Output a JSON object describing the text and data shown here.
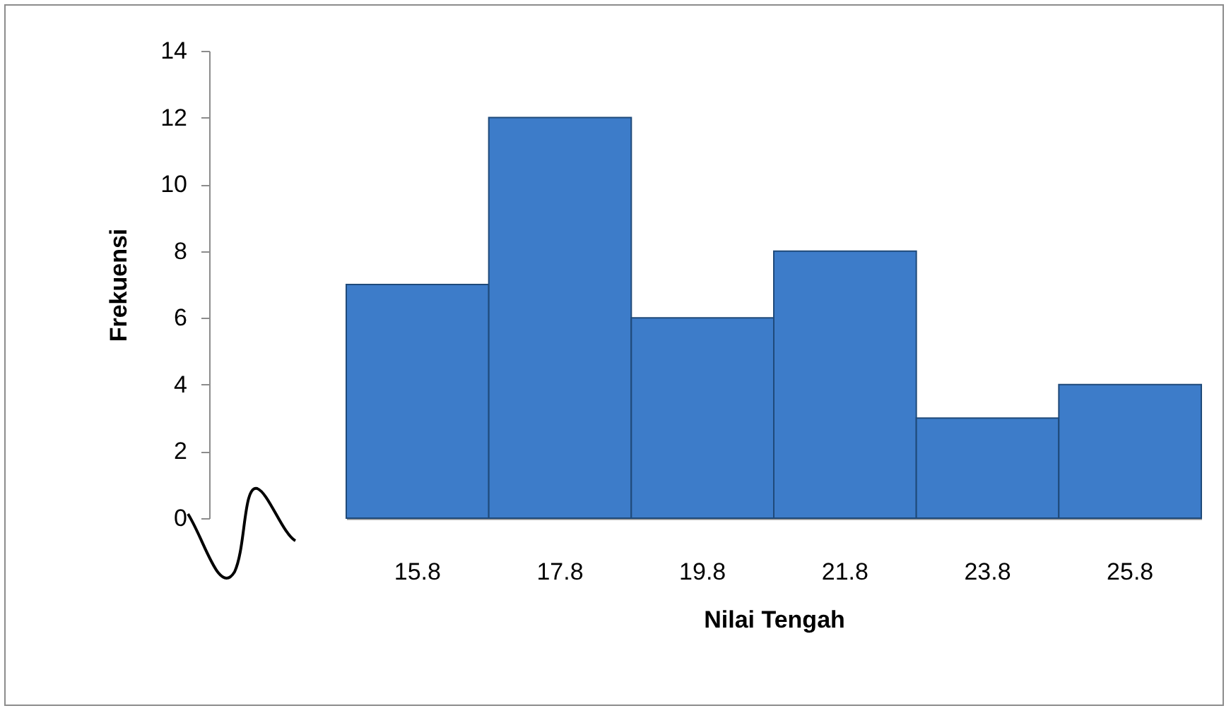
{
  "chart_data": {
    "type": "bar",
    "xlabel": "Nilai Tengah",
    "ylabel": "Frekuensi",
    "categories": [
      "15.8",
      "17.8",
      "19.8",
      "21.8",
      "23.8",
      "25.8"
    ],
    "values": [
      7,
      12,
      6,
      8,
      3,
      4
    ],
    "color": "#3d7cc9",
    "ylim": [
      0,
      14
    ],
    "yticks": [
      0,
      2,
      4,
      6,
      8,
      10,
      12,
      14
    ]
  }
}
